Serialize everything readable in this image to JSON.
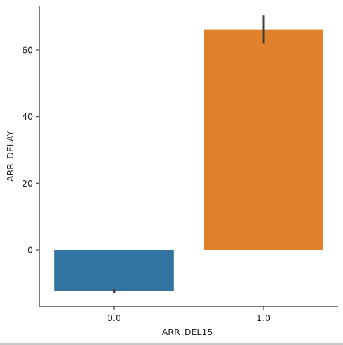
{
  "chart_data": {
    "type": "bar",
    "title": "",
    "xlabel": "ARR_DEL15",
    "ylabel": "ARR_DELAY",
    "categories": [
      "0.0",
      "1.0"
    ],
    "series": [
      {
        "values": [
          -12.3,
          66.2
        ],
        "error_low": [
          -12.9,
          62.0
        ],
        "error_high": [
          -11.7,
          70.3
        ],
        "colors": [
          "#3274a1",
          "#e1812c"
        ]
      }
    ],
    "ylim": [
      -16.9,
      73.3
    ],
    "yticks": [
      0,
      20,
      40,
      60
    ],
    "grid": false,
    "legend": "none"
  }
}
